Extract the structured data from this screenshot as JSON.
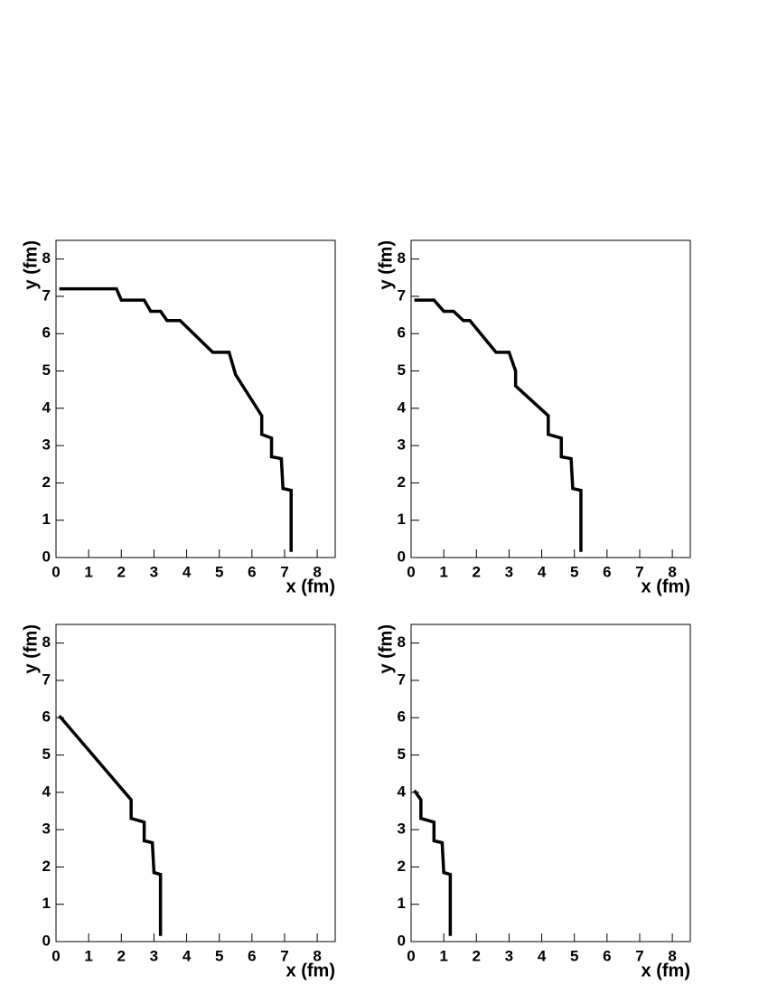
{
  "chart_data": [
    {
      "type": "line",
      "xlabel": "x (fm)",
      "ylabel": "y (fm)",
      "x": [
        0.1,
        1.85,
        2.0,
        2.7,
        2.9,
        3.2,
        3.4,
        3.8,
        4.8,
        5.3,
        5.5,
        6.3,
        6.3,
        6.6,
        6.6,
        6.9,
        6.95,
        7.2,
        7.2
      ],
      "series": [
        {
          "color": "#000000",
          "values": [
            7.2,
            7.2,
            6.9,
            6.9,
            6.6,
            6.6,
            6.35,
            6.35,
            5.5,
            5.5,
            4.9,
            3.8,
            3.3,
            3.2,
            2.7,
            2.65,
            1.85,
            1.8,
            0.15
          ]
        }
      ],
      "xlim": [
        0,
        8.55
      ],
      "ylim": [
        0,
        8.5
      ],
      "xticks": [
        0,
        1,
        2,
        3,
        4,
        5,
        6,
        7,
        8
      ],
      "yticks": [
        0,
        1,
        2,
        3,
        4,
        5,
        6,
        7,
        8
      ]
    },
    {
      "type": "line",
      "xlabel": "x (fm)",
      "ylabel": "y (fm)",
      "x": [
        0.1,
        0.7,
        1.0,
        1.3,
        1.6,
        1.8,
        2.6,
        3.0,
        3.2,
        3.2,
        4.2,
        4.2,
        4.6,
        4.6,
        4.9,
        4.95,
        5.2,
        5.2
      ],
      "series": [
        {
          "color": "#000000",
          "values": [
            6.9,
            6.9,
            6.6,
            6.6,
            6.35,
            6.35,
            5.5,
            5.5,
            5.0,
            4.6,
            3.8,
            3.3,
            3.2,
            2.7,
            2.65,
            1.85,
            1.8,
            0.15
          ]
        }
      ],
      "xlim": [
        0,
        8.55
      ],
      "ylim": [
        0,
        8.5
      ],
      "xticks": [
        0,
        1,
        2,
        3,
        4,
        5,
        6,
        7,
        8
      ],
      "yticks": [
        0,
        1,
        2,
        3,
        4,
        5,
        6,
        7,
        8
      ]
    },
    {
      "type": "line",
      "xlabel": "x (fm)",
      "ylabel": "y (fm)",
      "x": [
        0.1,
        2.3,
        2.3,
        2.7,
        2.7,
        2.95,
        3.0,
        3.2,
        3.2
      ],
      "series": [
        {
          "color": "#000000",
          "values": [
            6.05,
            3.8,
            3.3,
            3.2,
            2.7,
            2.65,
            1.85,
            1.8,
            0.15
          ]
        }
      ],
      "xlim": [
        0,
        8.55
      ],
      "ylim": [
        0,
        8.5
      ],
      "xticks": [
        0,
        1,
        2,
        3,
        4,
        5,
        6,
        7,
        8
      ],
      "yticks": [
        0,
        1,
        2,
        3,
        4,
        5,
        6,
        7,
        8
      ]
    },
    {
      "type": "line",
      "xlabel": "x (fm)",
      "ylabel": "y (fm)",
      "x": [
        0.1,
        0.3,
        0.3,
        0.7,
        0.7,
        0.95,
        1.0,
        1.2,
        1.2
      ],
      "series": [
        {
          "color": "#000000",
          "values": [
            4.05,
            3.8,
            3.3,
            3.2,
            2.7,
            2.65,
            1.85,
            1.8,
            0.15
          ]
        }
      ],
      "xlim": [
        0,
        8.55
      ],
      "ylim": [
        0,
        8.5
      ],
      "xticks": [
        0,
        1,
        2,
        3,
        4,
        5,
        6,
        7,
        8
      ],
      "yticks": [
        0,
        1,
        2,
        3,
        4,
        5,
        6,
        7,
        8
      ]
    }
  ]
}
